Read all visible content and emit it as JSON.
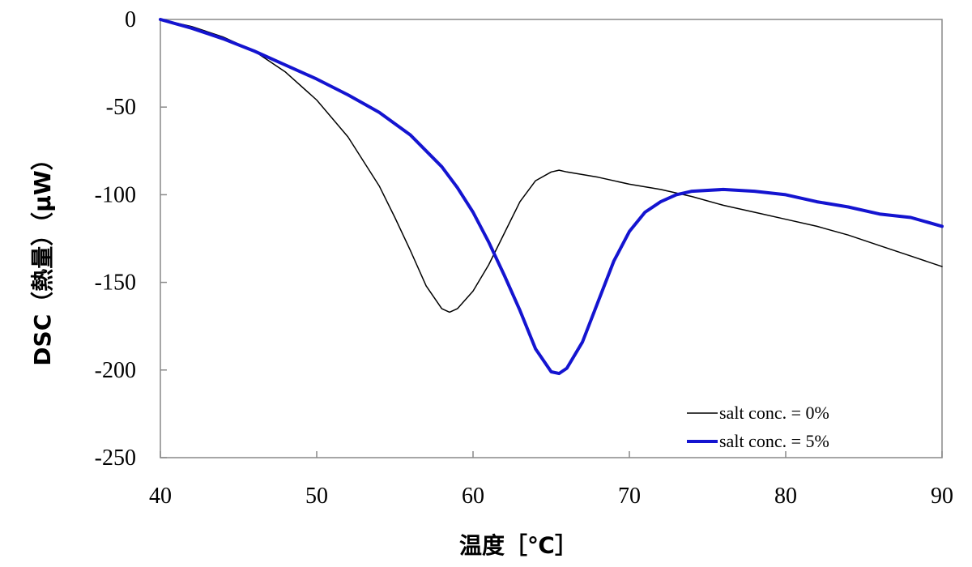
{
  "chart_data": {
    "type": "line",
    "title": "",
    "xlabel": "温度［℃］",
    "ylabel": "DSC（熱量）（μW）",
    "xlim": [
      40,
      90
    ],
    "ylim": [
      -250,
      0
    ],
    "xticks": [
      40,
      50,
      60,
      70,
      80,
      90
    ],
    "yticks": [
      0,
      -50,
      -100,
      -150,
      -200,
      -250
    ],
    "grid": false,
    "legend_position": "bottom-right",
    "series": [
      {
        "name": "salt conc. = 0%",
        "color": "#000000",
        "x": [
          40,
          42,
          44,
          46,
          48,
          50,
          52,
          54,
          55,
          56,
          57,
          58,
          58.5,
          59,
          60,
          61,
          62,
          63,
          64,
          65,
          65.5,
          66,
          68,
          70,
          72,
          74,
          76,
          78,
          80,
          82,
          84,
          86,
          88,
          90
        ],
        "y": [
          0,
          -4,
          -10,
          -18,
          -30,
          -46,
          -67,
          -95,
          -113,
          -132,
          -152,
          -165,
          -167,
          -165,
          -155,
          -140,
          -122,
          -104,
          -92,
          -87,
          -86,
          -87,
          -90,
          -94,
          -97,
          -101,
          -106,
          -110,
          -114,
          -118,
          -123,
          -129,
          -135,
          -141
        ]
      },
      {
        "name": "salt conc. = 5%",
        "color": "#1414d0",
        "x": [
          40,
          42,
          44,
          46,
          48,
          50,
          52,
          54,
          56,
          58,
          59,
          60,
          61,
          62,
          63,
          64,
          65,
          65.5,
          66,
          67,
          68,
          69,
          70,
          71,
          72,
          73,
          74,
          76,
          78,
          80,
          82,
          84,
          86,
          88,
          90
        ],
        "y": [
          0,
          -5,
          -11,
          -18,
          -26,
          -34,
          -43,
          -53,
          -66,
          -84,
          -96,
          -110,
          -127,
          -146,
          -166,
          -188,
          -201,
          -202,
          -199,
          -184,
          -161,
          -138,
          -121,
          -110,
          -104,
          -100,
          -98,
          -97,
          -98,
          -100,
          -104,
          -107,
          -111,
          -113,
          -118
        ]
      }
    ]
  }
}
